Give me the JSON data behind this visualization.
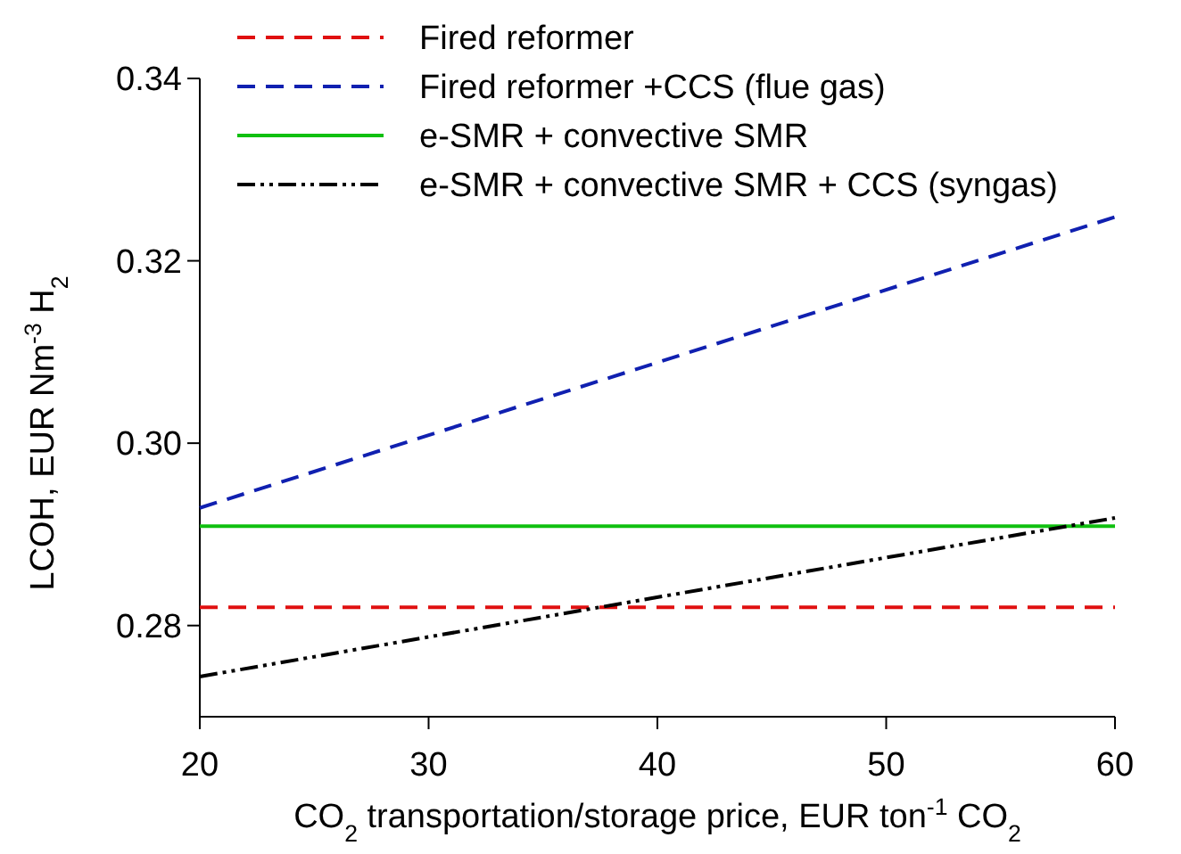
{
  "chart_data": {
    "type": "line",
    "xlabel": "CO$_{2}$ transportation/storage price, EUR ton$^{-1}$ CO$_{2}$",
    "ylabel": "LCOH, EUR Nm$^{-3}$ H$_{2}$",
    "x": [
      20,
      60
    ],
    "xlim": [
      20,
      60
    ],
    "xticks": [
      20,
      30,
      40,
      50,
      60
    ],
    "ylim": [
      0.27,
      0.34
    ],
    "yticks": [
      {
        "value": 0.28,
        "label": "0.28"
      },
      {
        "value": 0.3,
        "label": "0.30"
      },
      {
        "value": 0.32,
        "label": "0.32"
      },
      {
        "value": 0.34,
        "label": "0.34"
      }
    ],
    "grid": false,
    "legend": "top",
    "marker": "none",
    "series": [
      {
        "name": "Fired reformer",
        "color": "#e01010",
        "values": [
          0.282,
          0.282
        ],
        "line_style": "dashed"
      },
      {
        "name": "Fired reformer +CCS (flue gas)",
        "color": "#1020b0",
        "values": [
          0.2929,
          0.3248
        ],
        "line_style": "dashed"
      },
      {
        "name": "e-SMR + convective SMR",
        "color": "#10c010",
        "values": [
          0.2909,
          0.2909
        ],
        "line_style": "solid"
      },
      {
        "name": "e-SMR + convective SMR + CCS (syngas)",
        "color": "#000000",
        "values": [
          0.2744,
          0.2918
        ],
        "line_style": "dotted"
      }
    ]
  }
}
